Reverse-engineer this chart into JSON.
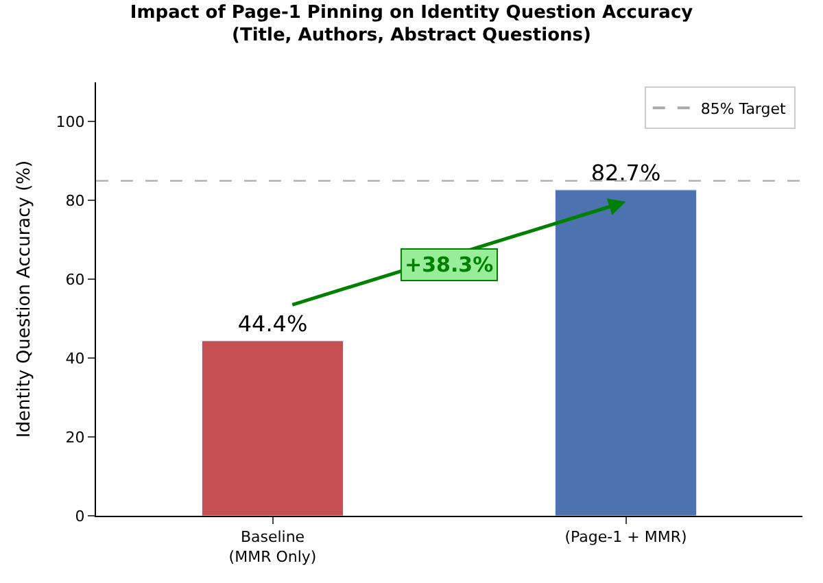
{
  "chart_data": {
    "type": "bar",
    "title": "Impact of Page-1 Pinning on Identity Question Accuracy\n(Title, Authors, Abstract Questions)",
    "ylabel": "Identity Question Accuracy (%)",
    "categories": [
      "Baseline\n(MMR Only)",
      "(Page-1 + MMR)"
    ],
    "values": [
      44.4,
      82.7
    ],
    "colors": [
      "#c44e52",
      "#4c72b0"
    ],
    "value_labels": [
      "44.4%",
      "82.7%"
    ],
    "ylim": [
      0,
      110
    ],
    "yticks": [
      0,
      20,
      40,
      60,
      80,
      100
    ],
    "ref_lines": [
      {
        "axis": "y",
        "value": 85,
        "label": "85% Target",
        "color": "#aaaaaa",
        "line_style": "dashed"
      }
    ],
    "annotations": [
      "+38.3%"
    ],
    "legend": "top right"
  }
}
